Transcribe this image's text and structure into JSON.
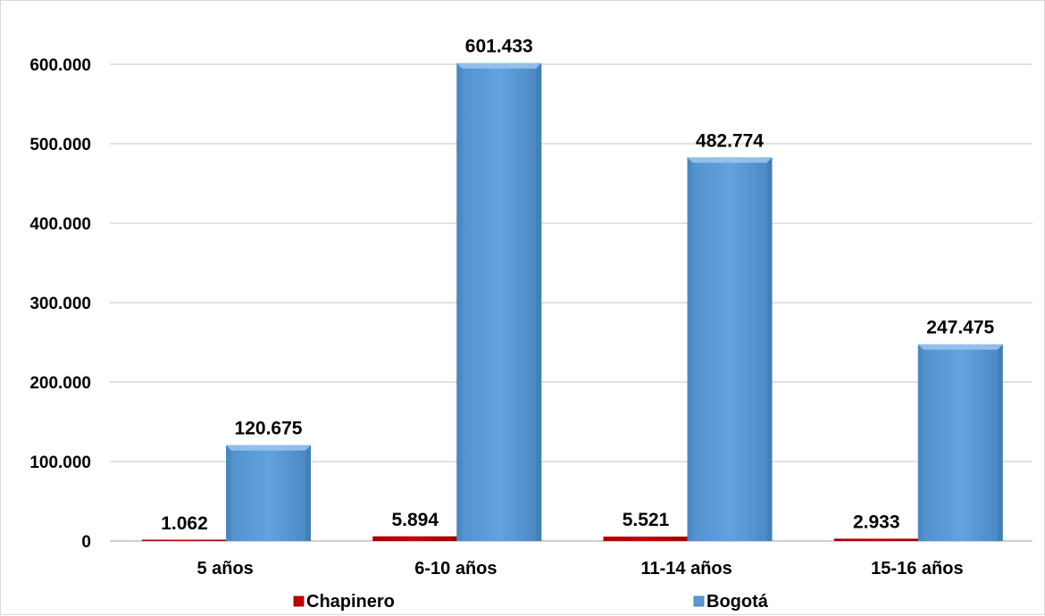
{
  "chart_data": {
    "type": "bar",
    "title": "",
    "xlabel": "",
    "ylabel": "",
    "categories": [
      "5 años",
      "6-10 años",
      "11-14 años",
      "15-16 años"
    ],
    "series": [
      {
        "name": "Chapinero",
        "values": [
          1062,
          5894,
          5521,
          2933
        ],
        "labels": [
          "1.062",
          "5.894",
          "5.521",
          "2.933"
        ],
        "color": "#c00000"
      },
      {
        "name": "Bogotá",
        "values": [
          120675,
          601433,
          482774,
          247475
        ],
        "labels": [
          "120.675",
          "601.433",
          "482.774",
          "247.475"
        ],
        "color": "#5b9bd5"
      }
    ],
    "ylim": [
      0,
      600000
    ],
    "yticks": [
      0,
      100000,
      200000,
      300000,
      400000,
      500000,
      600000
    ],
    "ytick_labels": [
      "0",
      "100.000",
      "200.000",
      "300.000",
      "400.000",
      "500.000",
      "600.000"
    ],
    "grid": true,
    "legend_position": "bottom"
  }
}
